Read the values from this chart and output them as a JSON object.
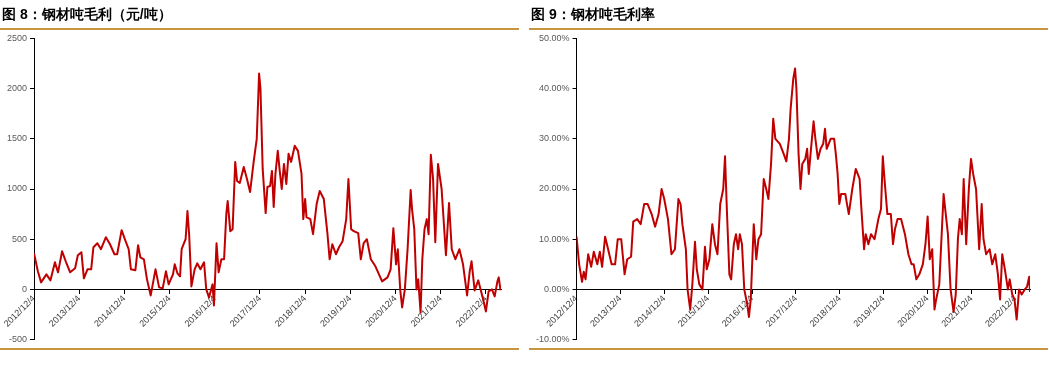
{
  "chart_data": [
    {
      "type": "line",
      "title": "图 8：钢材吨毛利（元/吨）",
      "color": "#c00000",
      "x": [
        "2012-12-04",
        "2013-01-04",
        "2013-01-30",
        "2013-03-14",
        "2013-04-16",
        "2013-05-22",
        "2013-06-16",
        "2013-07-19",
        "2013-08-17",
        "2013-09-22",
        "2013-11-01",
        "2013-11-23",
        "2013-12-22",
        "2014-01-11",
        "2014-02-09",
        "2014-03-11",
        "2014-03-29",
        "2014-04-30",
        "2014-05-29",
        "2014-07-08",
        "2014-08-10",
        "2014-09-15",
        "2014-10-07",
        "2014-11-12",
        "2014-12-08",
        "2015-01-08",
        "2015-01-26",
        "2015-03-03",
        "2015-03-25",
        "2015-04-12",
        "2015-05-11",
        "2015-06-05",
        "2015-07-05",
        "2015-07-26",
        "2015-08-13",
        "2015-09-11",
        "2015-10-10",
        "2015-11-05",
        "2015-11-27",
        "2016-01-01",
        "2016-01-15",
        "2016-02-06",
        "2016-02-27",
        "2016-03-11",
        "2016-04-12",
        "2016-04-27",
        "2016-05-11",
        "2016-05-29",
        "2016-06-24",
        "2016-07-15",
        "2016-08-10",
        "2016-09-08",
        "2016-09-26",
        "2016-10-18",
        "2016-11-16",
        "2016-11-27",
        "2016-12-18",
        "2017-01-04",
        "2017-01-26",
        "2017-02-17",
        "2017-03-07",
        "2017-03-18",
        "2017-04-08",
        "2017-04-27",
        "2017-05-18",
        "2017-06-02",
        "2017-06-24",
        "2017-07-26",
        "2017-08-21",
        "2017-09-15",
        "2017-10-14",
        "2017-11-08",
        "2017-11-27",
        "2017-12-08",
        "2017-12-26",
        "2018-01-19",
        "2018-02-02",
        "2018-02-24",
        "2018-03-11",
        "2018-03-25",
        "2018-04-08",
        "2018-04-27",
        "2018-05-11",
        "2018-05-29",
        "2018-06-16",
        "2018-07-05",
        "2018-07-23",
        "2018-08-13",
        "2018-09-11",
        "2018-10-07",
        "2018-11-05",
        "2018-11-19",
        "2018-12-04",
        "2018-12-15",
        "2019-01-15",
        "2019-02-06",
        "2019-03-07",
        "2019-04-01",
        "2019-05-04",
        "2019-06-02",
        "2019-06-20",
        "2019-07-12",
        "2019-08-10",
        "2019-09-04",
        "2019-10-03",
        "2019-11-01",
        "2019-11-19",
        "2019-12-11",
        "2020-01-01",
        "2020-02-06",
        "2020-02-27",
        "2020-03-21",
        "2020-04-16",
        "2020-05-18",
        "2020-06-24",
        "2020-07-23",
        "2020-08-17",
        "2020-09-30",
        "2020-10-25",
        "2020-11-16",
        "2020-12-08",
        "2020-12-22",
        "2021-01-11",
        "2021-01-26",
        "2021-02-17",
        "2021-03-11",
        "2021-04-05",
        "2021-04-16",
        "2021-05-04",
        "2021-05-22",
        "2021-06-05",
        "2021-06-24",
        "2021-07-08",
        "2021-07-26",
        "2021-08-13",
        "2021-08-28",
        "2021-09-15",
        "2021-10-03",
        "2021-10-21",
        "2021-11-12",
        "2021-12-11",
        "2022-01-15",
        "2022-02-09",
        "2022-03-03",
        "2022-04-01",
        "2022-05-04",
        "2022-06-02",
        "2022-07-05",
        "2022-07-26",
        "2022-08-10",
        "2022-09-04",
        "2022-10-03",
        "2022-11-12",
        "2022-12-04",
        "2022-12-26",
        "2023-01-22",
        "2023-02-13",
        "2023-03-07",
        "2023-03-18",
        "2023-04-01"
      ],
      "values": [
        360,
        180,
        70,
        150,
        90,
        270,
        170,
        380,
        280,
        170,
        210,
        340,
        370,
        110,
        200,
        200,
        420,
        460,
        400,
        520,
        450,
        350,
        350,
        590,
        500,
        400,
        200,
        190,
        440,
        320,
        300,
        100,
        -60,
        80,
        200,
        20,
        10,
        180,
        50,
        150,
        250,
        160,
        130,
        400,
        500,
        780,
        540,
        30,
        200,
        260,
        200,
        270,
        0,
        -80,
        50,
        -160,
        460,
        170,
        300,
        300,
        750,
        880,
        580,
        600,
        1270,
        1080,
        1060,
        1220,
        1100,
        970,
        1270,
        1500,
        2150,
        2000,
        1200,
        760,
        1020,
        1030,
        1180,
        820,
        1150,
        1380,
        1200,
        1000,
        1250,
        1050,
        1350,
        1270,
        1430,
        1380,
        1150,
        700,
        900,
        720,
        700,
        550,
        850,
        980,
        900,
        560,
        300,
        450,
        350,
        420,
        480,
        700,
        1100,
        600,
        580,
        560,
        300,
        460,
        500,
        300,
        230,
        150,
        80,
        120,
        200,
        610,
        250,
        400,
        -10,
        -180,
        0,
        400,
        990,
        800,
        600,
        0,
        100,
        -230,
        300,
        600,
        700,
        550,
        1340,
        1100,
        470,
        1250,
        1000,
        340,
        860,
        400,
        300,
        400,
        250,
        -60,
        180,
        280,
        -10,
        90,
        -100,
        -220,
        -20,
        0,
        -70,
        80,
        120,
        -10
      ],
      "xlim": [
        "2012-12-04",
        "2023-04-05"
      ],
      "xticks": [
        {
          "value": "2012-12-04",
          "label": "2012/12/4"
        },
        {
          "value": "2013-12-04",
          "label": "2013/12/4"
        },
        {
          "value": "2014-12-04",
          "label": "2014/12/4"
        },
        {
          "value": "2015-12-04",
          "label": "2015/12/4"
        },
        {
          "value": "2016-12-04",
          "label": "2016/12/4"
        },
        {
          "value": "2017-12-04",
          "label": "2017/12/4"
        },
        {
          "value": "2018-12-04",
          "label": "2018/12/4"
        },
        {
          "value": "2019-12-04",
          "label": "2019/12/4"
        },
        {
          "value": "2020-12-04",
          "label": "2020/12/4"
        },
        {
          "value": "2021-12-04",
          "label": "2021/12/4"
        },
        {
          "value": "2022-12-04",
          "label": "2022/12/4"
        }
      ],
      "ylim": [
        -500,
        2500
      ],
      "yticks": [
        -500,
        0,
        500,
        1000,
        1500,
        2000,
        2500
      ]
    },
    {
      "type": "line",
      "title": "图 9：钢材吨毛利率",
      "color": "#c00000",
      "x": [
        "2012-12-04",
        "2012-12-26",
        "2013-01-19",
        "2013-02-02",
        "2013-02-17",
        "2013-03-11",
        "2013-04-05",
        "2013-04-27",
        "2013-05-26",
        "2013-06-16",
        "2013-07-05",
        "2013-07-30",
        "2013-08-24",
        "2013-09-22",
        "2013-10-21",
        "2013-11-12",
        "2013-12-11",
        "2014-01-08",
        "2014-01-30",
        "2014-03-03",
        "2014-03-21",
        "2014-04-23",
        "2014-05-22",
        "2014-06-20",
        "2014-07-19",
        "2014-08-21",
        "2014-09-19",
        "2014-10-18",
        "2014-11-12",
        "2014-12-04",
        "2015-01-04",
        "2015-02-02",
        "2015-03-03",
        "2015-04-01",
        "2015-04-19",
        "2015-05-04",
        "2015-06-02",
        "2015-06-16",
        "2015-07-08",
        "2015-07-26",
        "2015-08-17",
        "2015-09-01",
        "2015-09-22",
        "2015-10-18",
        "2015-11-08",
        "2015-11-23",
        "2015-12-15",
        "2016-01-08",
        "2016-01-30",
        "2016-02-20",
        "2016-03-14",
        "2016-04-08",
        "2016-04-23",
        "2016-05-08",
        "2016-05-29",
        "2016-06-13",
        "2016-07-05",
        "2016-07-23",
        "2016-08-10",
        "2016-08-24",
        "2016-09-11",
        "2016-09-30",
        "2016-10-25",
        "2016-11-08",
        "2016-11-23",
        "2016-12-18",
        "2017-01-08",
        "2017-01-26",
        "2017-02-17",
        "2017-03-11",
        "2017-04-01",
        "2017-04-19",
        "2017-05-11",
        "2017-05-29",
        "2017-06-16",
        "2017-07-23",
        "2017-08-24",
        "2017-09-15",
        "2017-10-07",
        "2017-10-21",
        "2017-11-12",
        "2017-11-27",
        "2017-12-08",
        "2017-12-26",
        "2018-01-11",
        "2018-01-26",
        "2018-02-20",
        "2018-03-07",
        "2018-03-21",
        "2018-04-16",
        "2018-04-30",
        "2018-05-15",
        "2018-06-05",
        "2018-06-27",
        "2018-07-19",
        "2018-08-03",
        "2018-08-17",
        "2018-09-19",
        "2018-10-18",
        "2018-11-01",
        "2018-11-16",
        "2018-11-30",
        "2018-12-15",
        "2019-01-19",
        "2019-02-02",
        "2019-02-17",
        "2019-03-18",
        "2019-04-16",
        "2019-05-18",
        "2019-06-02",
        "2019-06-24",
        "2019-07-08",
        "2019-07-30",
        "2019-08-21",
        "2019-09-19",
        "2019-10-21",
        "2019-11-12",
        "2019-11-27",
        "2019-12-11",
        "2020-01-04",
        "2020-02-02",
        "2020-02-20",
        "2020-03-07",
        "2020-03-29",
        "2020-04-27",
        "2020-05-29",
        "2020-06-27",
        "2020-07-23",
        "2020-08-10",
        "2020-09-01",
        "2020-09-26",
        "2020-10-25",
        "2020-11-16",
        "2020-12-04",
        "2020-12-22",
        "2021-01-11",
        "2021-01-30",
        "2021-02-13",
        "2021-03-11",
        "2021-03-25",
        "2021-04-16",
        "2021-05-04",
        "2021-05-22",
        "2021-06-13",
        "2021-07-08",
        "2021-07-26",
        "2021-08-13",
        "2021-08-28",
        "2021-09-15",
        "2021-09-30",
        "2021-10-21",
        "2021-11-12",
        "2021-11-30",
        "2021-12-18",
        "2022-01-11",
        "2022-02-06",
        "2022-02-27",
        "2022-03-14",
        "2022-04-05",
        "2022-05-04",
        "2022-05-26",
        "2022-06-20",
        "2022-07-12",
        "2022-07-30",
        "2022-08-17",
        "2022-09-08",
        "2022-10-03",
        "2022-10-18",
        "2022-11-08",
        "2022-11-27",
        "2022-12-15",
        "2023-01-04",
        "2023-01-26",
        "2023-02-20",
        "2023-03-11",
        "2023-03-29",
        "2023-04-05"
      ],
      "values": [
        10.5,
        5,
        1.5,
        3.5,
        2,
        7,
        4.5,
        7.5,
        5,
        7.5,
        4.5,
        10.5,
        8,
        5,
        5,
        10,
        10,
        3,
        6,
        6.5,
        13.5,
        14,
        13,
        17,
        17,
        15,
        12.5,
        15,
        20,
        18,
        14,
        7,
        8,
        18,
        17,
        13,
        8,
        0,
        -4,
        1,
        9.5,
        4,
        1,
        0,
        8.5,
        4,
        6,
        13,
        9,
        7,
        17,
        20,
        26.5,
        16,
        3,
        2,
        9,
        11,
        8,
        11,
        9,
        0,
        -3,
        -5.5,
        -2,
        13,
        6,
        10,
        11,
        22,
        20,
        18,
        25,
        34,
        30,
        29,
        27,
        25.5,
        30,
        36,
        42,
        44,
        40,
        27,
        20,
        25,
        26,
        28,
        23,
        30,
        33.5,
        30,
        26,
        28,
        29,
        32,
        28,
        30,
        30,
        27,
        23,
        17,
        19,
        19,
        17,
        15,
        20,
        24,
        22,
        16,
        8,
        11,
        9,
        11,
        10,
        14,
        16,
        26.5,
        22,
        15,
        15,
        9,
        12,
        14,
        14,
        11,
        7,
        5,
        5,
        2,
        3,
        5,
        9,
        14.5,
        6,
        8,
        -4,
        -2,
        1,
        8,
        19,
        15,
        11,
        0,
        -4.5,
        -1,
        10,
        14,
        11,
        22,
        9,
        20,
        26,
        23,
        20,
        8,
        17,
        10,
        7,
        8,
        5,
        7,
        3,
        -2,
        7,
        4,
        0,
        2,
        -1,
        -2,
        -6,
        0,
        -1,
        0,
        0.5,
        2.5,
        -0.5
      ],
      "xlim": [
        "2012-12-04",
        "2023-04-05"
      ],
      "xticks": [
        {
          "value": "2012-12-04",
          "label": "2012/12/4"
        },
        {
          "value": "2013-12-04",
          "label": "2013/12/4"
        },
        {
          "value": "2014-12-04",
          "label": "2014/12/4"
        },
        {
          "value": "2015-12-04",
          "label": "2015/12/4"
        },
        {
          "value": "2016-12-04",
          "label": "2016/12/4"
        },
        {
          "value": "2017-12-04",
          "label": "2017/12/4"
        },
        {
          "value": "2018-12-04",
          "label": "2018/12/4"
        },
        {
          "value": "2019-12-04",
          "label": "2019/12/4"
        },
        {
          "value": "2020-12-04",
          "label": "2020/12/4"
        },
        {
          "value": "2021-12-04",
          "label": "2021/12/4"
        },
        {
          "value": "2022-12-04",
          "label": "2022/12/4"
        }
      ],
      "ylim": [
        -10,
        50
      ],
      "yticks": [
        {
          "value": -10,
          "label": "-10.00%"
        },
        {
          "value": 0,
          "label": "0.00%"
        },
        {
          "value": 10,
          "label": "10.00%"
        },
        {
          "value": 20,
          "label": "20.00%"
        },
        {
          "value": 30,
          "label": "30.00%"
        },
        {
          "value": 40,
          "label": "40.00%"
        },
        {
          "value": 50,
          "label": "50.00%"
        }
      ]
    }
  ]
}
